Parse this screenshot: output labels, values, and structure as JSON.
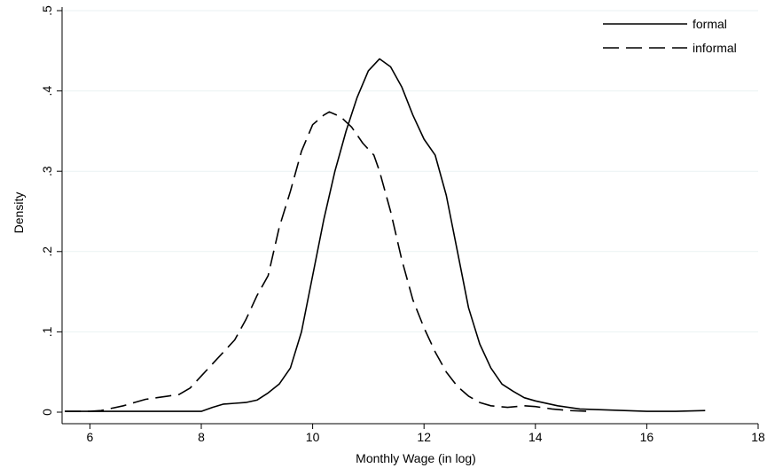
{
  "chart_data": {
    "type": "line",
    "title": "",
    "xlabel": "Monthly Wage (in log)",
    "ylabel": "Density",
    "xlim": [
      5.5,
      18
    ],
    "ylim": [
      0,
      0.5
    ],
    "xticks": [
      {
        "value": 6,
        "label": "6"
      },
      {
        "value": 8,
        "label": "8"
      },
      {
        "value": 10,
        "label": "10"
      },
      {
        "value": 12,
        "label": "12"
      },
      {
        "value": 14,
        "label": "14"
      },
      {
        "value": 16,
        "label": "16"
      },
      {
        "value": 18,
        "label": "18"
      }
    ],
    "yticks": [
      {
        "value": 0,
        "label": "0"
      },
      {
        "value": 0.1,
        "label": ".1"
      },
      {
        "value": 0.2,
        "label": ".2"
      },
      {
        "value": 0.3,
        "label": ".3"
      },
      {
        "value": 0.4,
        "label": ".4"
      },
      {
        "value": 0.5,
        "label": ".5"
      }
    ],
    "grid": "horizontal",
    "legend_position": "top-right",
    "series": [
      {
        "name": "formal",
        "style": "solid",
        "color": "#000000",
        "points": [
          [
            5.55,
            0.001
          ],
          [
            6.0,
            0.001
          ],
          [
            7.0,
            0.001
          ],
          [
            8.0,
            0.001
          ],
          [
            8.2,
            0.006
          ],
          [
            8.4,
            0.01
          ],
          [
            8.6,
            0.011
          ],
          [
            8.8,
            0.012
          ],
          [
            9.0,
            0.015
          ],
          [
            9.2,
            0.024
          ],
          [
            9.4,
            0.035
          ],
          [
            9.6,
            0.055
          ],
          [
            9.8,
            0.1
          ],
          [
            10.0,
            0.17
          ],
          [
            10.2,
            0.24
          ],
          [
            10.4,
            0.3
          ],
          [
            10.6,
            0.35
          ],
          [
            10.8,
            0.392
          ],
          [
            11.0,
            0.425
          ],
          [
            11.2,
            0.44
          ],
          [
            11.4,
            0.43
          ],
          [
            11.6,
            0.405
          ],
          [
            11.8,
            0.37
          ],
          [
            12.0,
            0.34
          ],
          [
            12.2,
            0.32
          ],
          [
            12.4,
            0.27
          ],
          [
            12.6,
            0.2
          ],
          [
            12.8,
            0.13
          ],
          [
            13.0,
            0.085
          ],
          [
            13.2,
            0.055
          ],
          [
            13.4,
            0.035
          ],
          [
            13.6,
            0.026
          ],
          [
            13.8,
            0.018
          ],
          [
            14.0,
            0.014
          ],
          [
            14.4,
            0.008
          ],
          [
            14.8,
            0.004
          ],
          [
            15.2,
            0.003
          ],
          [
            15.6,
            0.002
          ],
          [
            16.0,
            0.001
          ],
          [
            16.5,
            0.001
          ],
          [
            17.05,
            0.002
          ]
        ]
      },
      {
        "name": "informal",
        "style": "dashed",
        "color": "#000000",
        "points": [
          [
            5.55,
            0.001
          ],
          [
            6.0,
            0.001
          ],
          [
            6.2,
            0.002
          ],
          [
            6.4,
            0.005
          ],
          [
            6.6,
            0.008
          ],
          [
            6.8,
            0.012
          ],
          [
            7.0,
            0.016
          ],
          [
            7.2,
            0.018
          ],
          [
            7.4,
            0.02
          ],
          [
            7.6,
            0.022
          ],
          [
            7.8,
            0.03
          ],
          [
            8.0,
            0.045
          ],
          [
            8.2,
            0.06
          ],
          [
            8.4,
            0.075
          ],
          [
            8.6,
            0.09
          ],
          [
            8.8,
            0.115
          ],
          [
            9.0,
            0.145
          ],
          [
            9.2,
            0.17
          ],
          [
            9.4,
            0.23
          ],
          [
            9.6,
            0.275
          ],
          [
            9.8,
            0.325
          ],
          [
            10.0,
            0.358
          ],
          [
            10.2,
            0.37
          ],
          [
            10.3,
            0.374
          ],
          [
            10.5,
            0.368
          ],
          [
            10.7,
            0.355
          ],
          [
            10.9,
            0.335
          ],
          [
            11.1,
            0.32
          ],
          [
            11.2,
            0.3
          ],
          [
            11.4,
            0.25
          ],
          [
            11.6,
            0.19
          ],
          [
            11.8,
            0.14
          ],
          [
            12.0,
            0.105
          ],
          [
            12.2,
            0.075
          ],
          [
            12.4,
            0.05
          ],
          [
            12.6,
            0.032
          ],
          [
            12.8,
            0.02
          ],
          [
            13.0,
            0.012
          ],
          [
            13.2,
            0.008
          ],
          [
            13.5,
            0.006
          ],
          [
            13.8,
            0.008
          ],
          [
            14.0,
            0.007
          ],
          [
            14.3,
            0.004
          ],
          [
            14.6,
            0.002
          ],
          [
            15.0,
            0.001
          ]
        ]
      }
    ]
  }
}
